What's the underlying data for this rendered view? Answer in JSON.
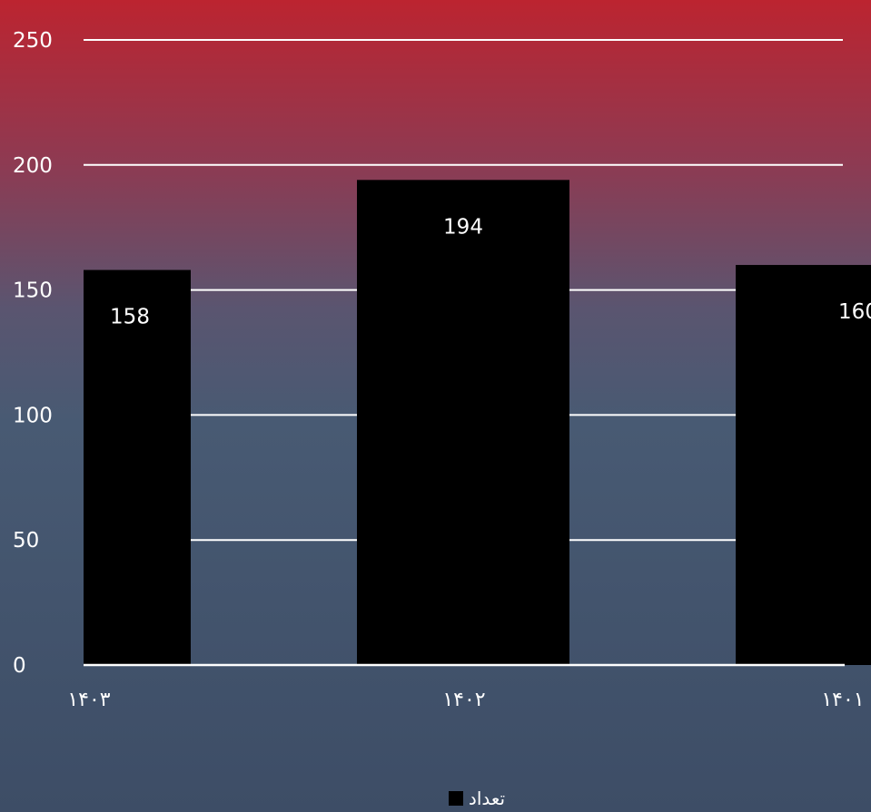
{
  "chart_data": {
    "type": "bar",
    "title": "",
    "xlabel": "",
    "ylabel": "",
    "categories": [
      "۱۴۰۳",
      "۱۴۰۲",
      "۱۴۰۱"
    ],
    "series": [
      {
        "name": "تعداد",
        "values": [
          158,
          194,
          160
        ],
        "color": "#000000"
      }
    ],
    "data_labels": [
      "158",
      "194",
      "160"
    ],
    "ylim": [
      0,
      250
    ],
    "yticks": [
      "0",
      "50",
      "100",
      "150",
      "200",
      "250"
    ],
    "grid": true,
    "legend_position": "bottom"
  },
  "colors": {
    "gridline": "#ffffff",
    "text": "#ffffff"
  }
}
